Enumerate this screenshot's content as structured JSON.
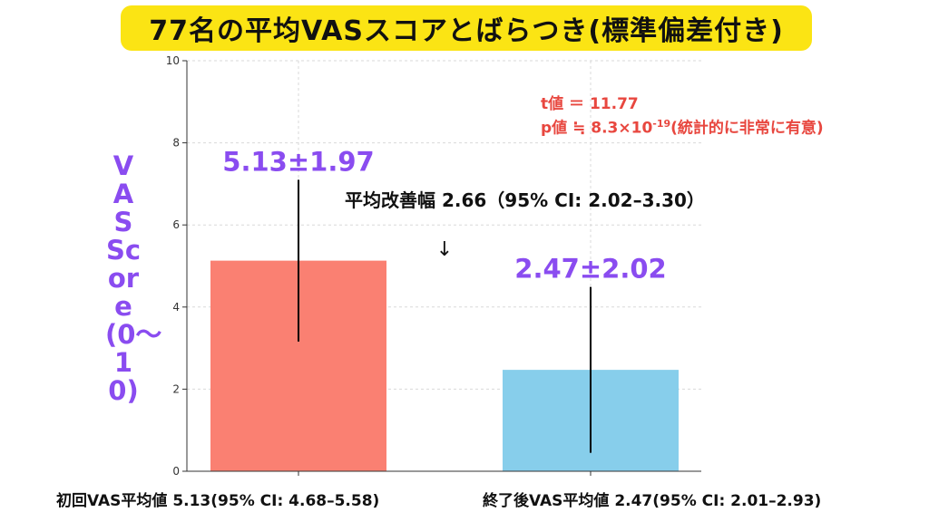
{
  "title": "77名の平均VASスコアとばらつき(標準偏差付き)",
  "y_axis_label": "VAS Score(0〜10)",
  "stats": {
    "t_line": "t値 ＝ 11.77",
    "p_line_prefix": "p値 ≒ 8.3×10",
    "p_exponent": "-19",
    "p_line_suffix": "(統計的に非常に有意)"
  },
  "annotation": {
    "improvement": "平均改善幅  2.66（95% CI: 2.02–3.30）",
    "arrow_glyph": "↓"
  },
  "bottom_labels": {
    "initial": "初回VAS平均値   5.13(95% CI: 4.68–5.58)",
    "final": "終了後VAS平均値   2.47(95% CI: 2.01–2.93)"
  },
  "chart_data": {
    "type": "bar",
    "categories": [
      "初回",
      "終了後"
    ],
    "values": [
      5.13,
      2.47
    ],
    "sd": [
      1.97,
      2.02
    ],
    "value_labels": [
      "5.13±1.97",
      "2.47±2.02"
    ],
    "colors": [
      "#fa8072",
      "#87ceeb"
    ],
    "label_color": "#8a4cf0",
    "ylim": [
      0,
      10
    ],
    "yticks": [
      "0",
      "2",
      "4",
      "6",
      "8",
      "10"
    ],
    "grid": true,
    "show_x_tick_labels": false
  }
}
